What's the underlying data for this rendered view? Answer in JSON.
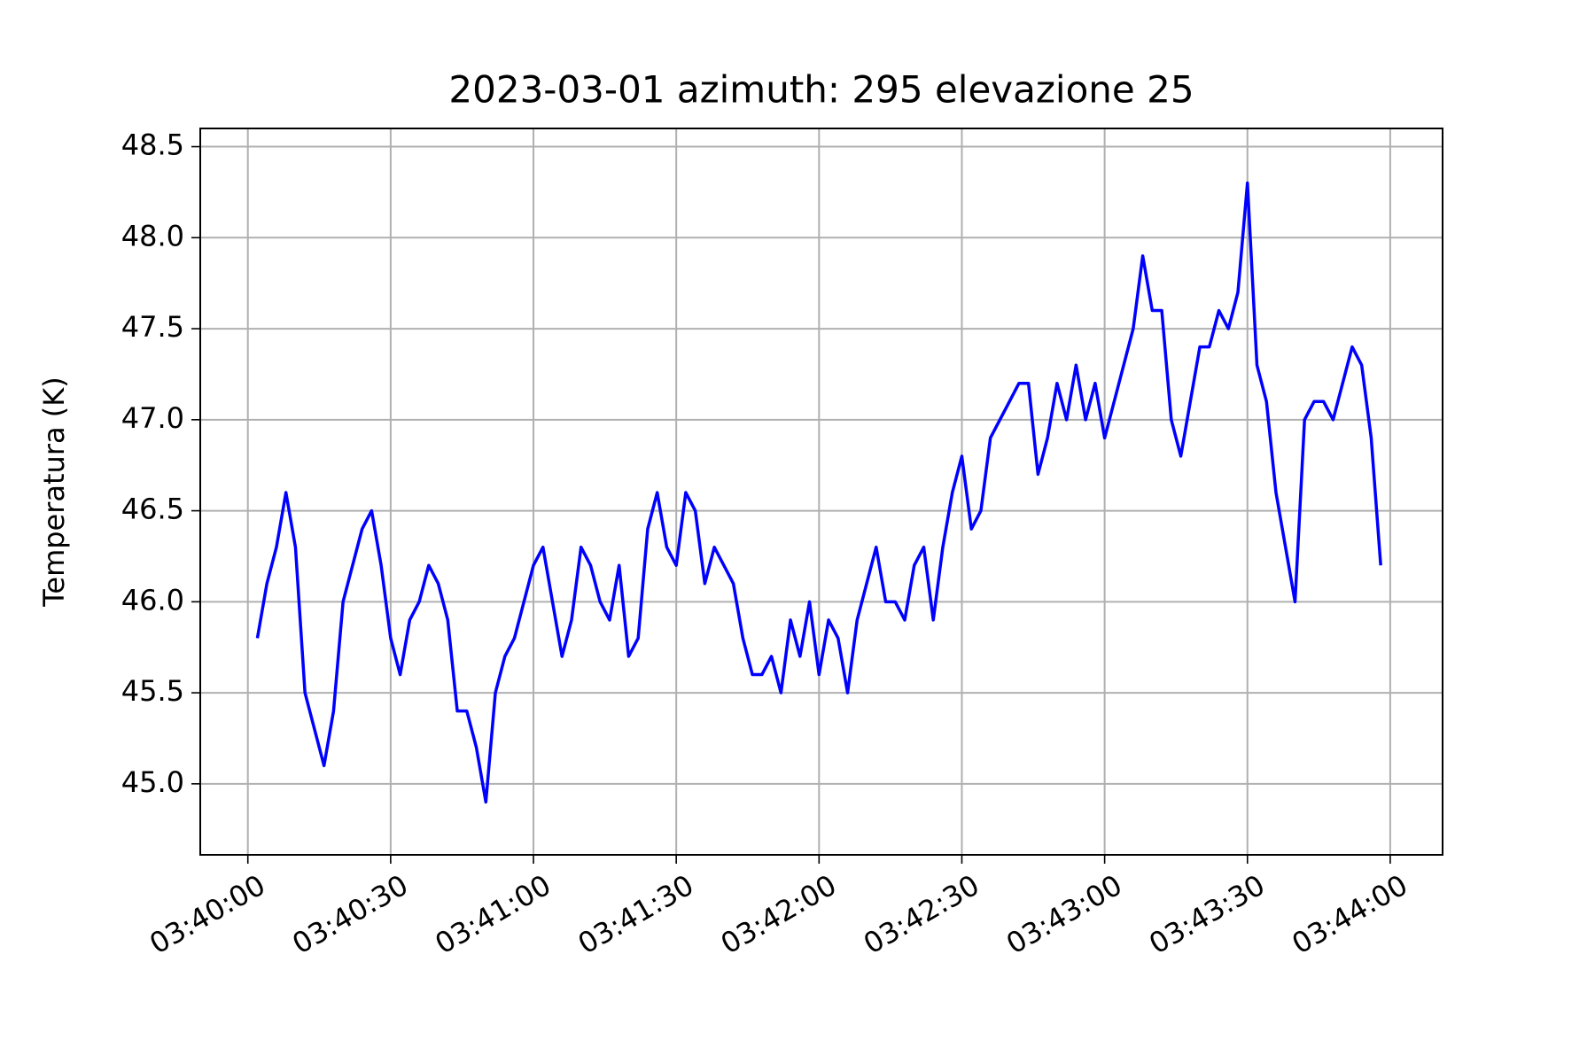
{
  "chart_data": {
    "type": "line",
    "title": "2023-03-01  azimuth: 295 elevazione 25",
    "ylabel": "Temperatura (K)",
    "x": [
      "03:40:02",
      "03:40:04",
      "03:40:06",
      "03:40:08",
      "03:40:10",
      "03:40:12",
      "03:40:14",
      "03:40:16",
      "03:40:18",
      "03:40:20",
      "03:40:22",
      "03:40:24",
      "03:40:26",
      "03:40:28",
      "03:40:30",
      "03:40:32",
      "03:40:34",
      "03:40:36",
      "03:40:38",
      "03:40:40",
      "03:40:42",
      "03:40:44",
      "03:40:46",
      "03:40:48",
      "03:40:50",
      "03:40:52",
      "03:40:54",
      "03:40:56",
      "03:40:58",
      "03:41:00",
      "03:41:02",
      "03:41:04",
      "03:41:06",
      "03:41:08",
      "03:41:10",
      "03:41:12",
      "03:41:14",
      "03:41:16",
      "03:41:18",
      "03:41:20",
      "03:41:22",
      "03:41:24",
      "03:41:26",
      "03:41:28",
      "03:41:30",
      "03:41:32",
      "03:41:34",
      "03:41:36",
      "03:41:38",
      "03:41:40",
      "03:41:42",
      "03:41:44",
      "03:41:46",
      "03:41:48",
      "03:41:50",
      "03:41:52",
      "03:41:54",
      "03:41:56",
      "03:41:58",
      "03:42:00",
      "03:42:02",
      "03:42:04",
      "03:42:06",
      "03:42:08",
      "03:42:10",
      "03:42:12",
      "03:42:14",
      "03:42:16",
      "03:42:18",
      "03:42:20",
      "03:42:22",
      "03:42:24",
      "03:42:26",
      "03:42:28",
      "03:42:30",
      "03:42:32",
      "03:42:34",
      "03:42:36",
      "03:42:38",
      "03:42:40",
      "03:42:42",
      "03:42:44",
      "03:42:46",
      "03:42:48",
      "03:42:50",
      "03:42:52",
      "03:42:54",
      "03:42:56",
      "03:42:58",
      "03:43:00",
      "03:43:02",
      "03:43:04",
      "03:43:06",
      "03:43:08",
      "03:43:10",
      "03:43:12",
      "03:43:14",
      "03:43:16",
      "03:43:18",
      "03:43:20",
      "03:43:22",
      "03:43:24",
      "03:43:26",
      "03:43:28",
      "03:43:30",
      "03:43:32",
      "03:43:34",
      "03:43:36",
      "03:43:38",
      "03:43:40",
      "03:43:42",
      "03:43:44",
      "03:43:46",
      "03:43:48",
      "03:43:50",
      "03:43:52",
      "03:43:54",
      "03:43:56",
      "03:43:58"
    ],
    "values": [
      45.8,
      46.1,
      46.3,
      46.6,
      46.3,
      45.5,
      45.3,
      45.1,
      45.4,
      46.0,
      46.2,
      46.4,
      46.5,
      46.2,
      45.8,
      45.6,
      45.9,
      46.0,
      46.2,
      46.1,
      45.9,
      45.4,
      45.4,
      45.2,
      44.9,
      45.5,
      45.7,
      45.8,
      46.0,
      46.2,
      46.3,
      46.0,
      45.7,
      45.9,
      46.3,
      46.2,
      46.0,
      45.9,
      46.2,
      45.7,
      45.8,
      46.4,
      46.6,
      46.3,
      46.2,
      46.6,
      46.5,
      46.1,
      46.3,
      46.2,
      46.1,
      45.8,
      45.6,
      45.6,
      45.7,
      45.5,
      45.9,
      45.7,
      46.0,
      45.6,
      45.9,
      45.8,
      45.5,
      45.9,
      46.1,
      46.3,
      46.0,
      46.0,
      45.9,
      46.2,
      46.3,
      45.9,
      46.3,
      46.6,
      46.8,
      46.4,
      46.5,
      46.9,
      47.0,
      47.1,
      47.2,
      47.2,
      46.7,
      46.9,
      47.2,
      47.0,
      47.3,
      47.0,
      47.2,
      46.9,
      47.1,
      47.3,
      47.5,
      47.9,
      47.6,
      47.6,
      47.0,
      46.8,
      47.1,
      47.4,
      47.4,
      47.6,
      47.5,
      47.7,
      48.3,
      47.3,
      47.1,
      46.6,
      46.3,
      46.0,
      47.0,
      47.1,
      47.1,
      47.0,
      47.2,
      47.4,
      47.3,
      46.9,
      46.2
    ],
    "color": "#0000ff",
    "xlim": [
      "03:39:50",
      "03:44:11"
    ],
    "xticks": [
      "03:40:00",
      "03:40:30",
      "03:41:00",
      "03:41:30",
      "03:42:00",
      "03:42:30",
      "03:43:00",
      "03:43:30",
      "03:44:00"
    ],
    "ylim": [
      44.61,
      48.6
    ],
    "yticks": [
      {
        "value": 45,
        "label": "45.0"
      },
      45.5,
      {
        "value": 46,
        "label": "46.0"
      },
      46.5,
      {
        "value": 47,
        "label": "47.0"
      },
      47.5,
      {
        "value": 48,
        "label": "48.0"
      },
      48.5
    ],
    "grid": true
  }
}
